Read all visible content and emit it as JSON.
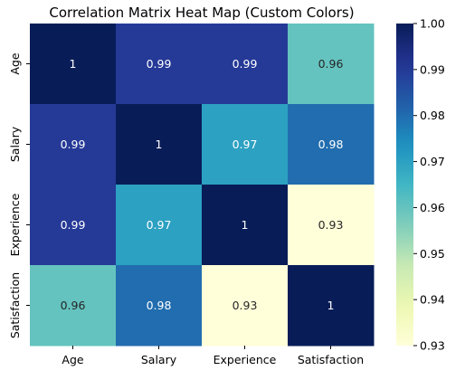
{
  "chart_data": {
    "type": "heatmap",
    "title": "Correlation Matrix Heat Map (Custom Colors)",
    "x_categories": [
      "Age",
      "Salary",
      "Experience",
      "Satisfaction"
    ],
    "y_categories": [
      "Age",
      "Salary",
      "Experience",
      "Satisfaction"
    ],
    "values": [
      [
        1.0,
        0.99,
        0.99,
        0.96
      ],
      [
        0.99,
        1.0,
        0.97,
        0.98
      ],
      [
        0.99,
        0.97,
        1.0,
        0.93
      ],
      [
        0.96,
        0.98,
        0.93,
        1.0
      ]
    ],
    "annotations": [
      [
        "1",
        "0.99",
        "0.99",
        "0.96"
      ],
      [
        "0.99",
        "1",
        "0.97",
        "0.98"
      ],
      [
        "0.99",
        "0.97",
        "1",
        "0.93"
      ],
      [
        "0.96",
        "0.98",
        "0.93",
        "1"
      ]
    ],
    "colormap": "YlGnBu",
    "color_range": [
      0.93,
      1.0
    ],
    "colorbar": {
      "ticks": [
        0.93,
        0.94,
        0.95,
        0.96,
        0.97,
        0.98,
        0.99,
        1.0
      ],
      "tick_labels": [
        "0.93",
        "0.94",
        "0.95",
        "0.96",
        "0.97",
        "0.98",
        "0.99",
        "1.00"
      ],
      "placement": "right"
    },
    "grid": false
  }
}
